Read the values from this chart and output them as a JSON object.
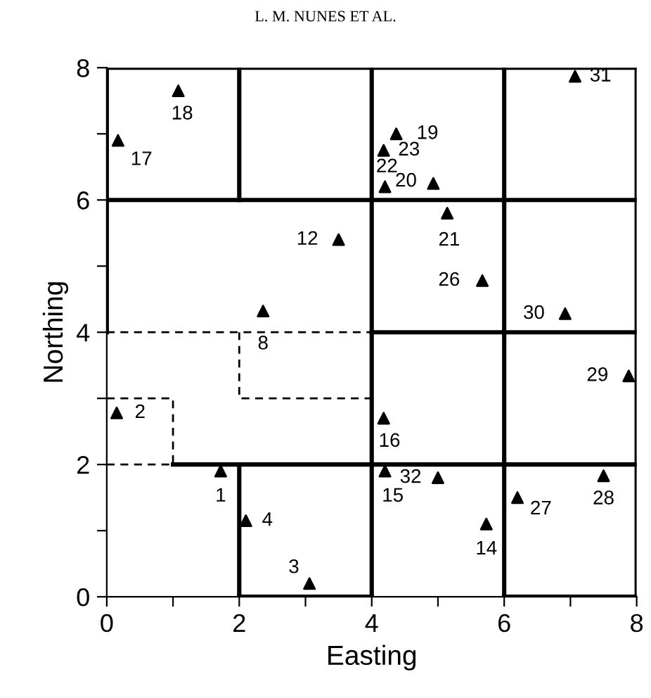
{
  "chart_data": {
    "type": "scatter",
    "xlabel": "Easting",
    "ylabel": "Northing",
    "xlim": [
      0,
      8
    ],
    "ylim": [
      0,
      8
    ],
    "xticks": [
      0,
      {
        "value": 1,
        "label": null
      },
      2,
      {
        "value": 3,
        "label": null
      },
      4,
      {
        "value": 5,
        "label": null
      },
      6,
      {
        "value": 7,
        "label": null
      },
      8
    ],
    "yticks": [
      0,
      {
        "value": 1,
        "label": null
      },
      2,
      {
        "value": 3,
        "label": null
      },
      4,
      {
        "value": 5,
        "label": null
      },
      6,
      {
        "value": 7,
        "label": null
      },
      8
    ],
    "series": [
      {
        "type": "line",
        "color": "#000000",
        "line_style": "solid",
        "x": [
          0,
          8
        ],
        "values": [
          8,
          8
        ]
      },
      {
        "type": "line",
        "color": "#000000",
        "line_style": "solid",
        "x": [
          0,
          0
        ],
        "values": [
          4,
          8
        ]
      },
      {
        "type": "line",
        "color": "#000000",
        "line_style": "solid",
        "x": [
          2,
          2
        ],
        "values": [
          6,
          8
        ]
      },
      {
        "type": "line",
        "color": "#000000",
        "line_style": "solid",
        "x": [
          0,
          8
        ],
        "values": [
          6,
          6
        ]
      },
      {
        "type": "line",
        "color": "#000000",
        "line_style": "solid",
        "x": [
          4,
          4
        ],
        "values": [
          0,
          8
        ]
      },
      {
        "type": "line",
        "color": "#000000",
        "line_style": "solid",
        "x": [
          6,
          6
        ],
        "values": [
          0,
          8
        ]
      },
      {
        "type": "line",
        "color": "#000000",
        "line_style": "solid",
        "x": [
          8,
          8
        ],
        "values": [
          0,
          8
        ]
      },
      {
        "type": "line",
        "color": "#000000",
        "line_style": "solid",
        "x": [
          4,
          8
        ],
        "values": [
          4,
          4
        ]
      },
      {
        "type": "line",
        "color": "#000000",
        "line_style": "solid",
        "x": [
          1,
          8
        ],
        "values": [
          2,
          2
        ]
      },
      {
        "type": "line",
        "color": "#000000",
        "line_style": "solid",
        "x": [
          2,
          2
        ],
        "values": [
          0,
          2
        ]
      },
      {
        "type": "line",
        "color": "#000000",
        "line_style": "solid",
        "x": [
          2,
          4
        ],
        "values": [
          0,
          0
        ]
      },
      {
        "type": "line",
        "color": "#000000",
        "line_style": "solid",
        "x": [
          6,
          8
        ],
        "values": [
          0,
          0
        ]
      },
      {
        "type": "line",
        "color": "#000000",
        "line_style": "dashed",
        "x": [
          0,
          1,
          1
        ],
        "values": [
          3,
          3,
          2
        ]
      },
      {
        "type": "line",
        "color": "#000000",
        "line_style": "dashed",
        "x": [
          0,
          1
        ],
        "values": [
          2,
          2
        ]
      },
      {
        "type": "line",
        "color": "#000000",
        "line_style": "dashed",
        "x": [
          0,
          4
        ],
        "values": [
          4,
          4
        ]
      },
      {
        "type": "line",
        "color": "#000000",
        "line_style": "dashed",
        "x": [
          2,
          2,
          4
        ],
        "values": [
          4,
          3,
          3
        ]
      },
      {
        "color": "#000000",
        "marker": "triangle",
        "x": [
          1.72,
          0.15,
          3.06,
          2.1,
          2.36,
          3.5,
          5.73,
          4.2,
          4.18,
          0.17,
          1.08,
          4.37,
          4.93,
          5.14,
          4.2,
          4.18,
          5.67,
          6.2,
          7.5,
          7.88,
          6.92,
          7.07,
          5.0
        ],
        "values": [
          1.9,
          2.78,
          0.2,
          1.15,
          4.32,
          5.4,
          1.1,
          1.9,
          2.7,
          6.9,
          7.65,
          7.0,
          6.25,
          5.8,
          6.2,
          6.75,
          4.78,
          1.5,
          1.83,
          3.34,
          4.28,
          7.87,
          1.8
        ]
      }
    ],
    "annotations": [
      "L. M. NUNES ET AL.",
      {
        "text": "1",
        "x": 1.72,
        "y": 1.9
      },
      {
        "text": "2",
        "x": 0.15,
        "y": 2.78
      },
      {
        "text": "3",
        "x": 3.06,
        "y": 0.2
      },
      {
        "text": "4",
        "x": 2.1,
        "y": 1.15
      },
      {
        "text": "8",
        "x": 2.36,
        "y": 4.32
      },
      {
        "text": "12",
        "x": 3.5,
        "y": 5.4
      },
      {
        "text": "14",
        "x": 5.73,
        "y": 1.1
      },
      {
        "text": "15",
        "x": 4.2,
        "y": 1.9
      },
      {
        "text": "16",
        "x": 4.18,
        "y": 2.7
      },
      {
        "text": "17",
        "x": 0.17,
        "y": 6.9
      },
      {
        "text": "18",
        "x": 1.08,
        "y": 7.65
      },
      {
        "text": "19",
        "x": 4.37,
        "y": 7.0
      },
      {
        "text": "20",
        "x": 4.93,
        "y": 6.25
      },
      {
        "text": "21",
        "x": 5.14,
        "y": 5.8
      },
      {
        "text": "22",
        "x": 4.2,
        "y": 6.2
      },
      {
        "text": "23",
        "x": 4.18,
        "y": 6.75
      },
      {
        "text": "26",
        "x": 5.67,
        "y": 4.78
      },
      {
        "text": "27",
        "x": 6.2,
        "y": 1.5
      },
      {
        "text": "28",
        "x": 7.5,
        "y": 1.83
      },
      {
        "text": "29",
        "x": 7.88,
        "y": 3.34
      },
      {
        "text": "30",
        "x": 6.92,
        "y": 4.28
      },
      {
        "text": "31",
        "x": 7.07,
        "y": 7.87
      },
      {
        "text": "32",
        "x": 5.0,
        "y": 1.8
      }
    ]
  }
}
